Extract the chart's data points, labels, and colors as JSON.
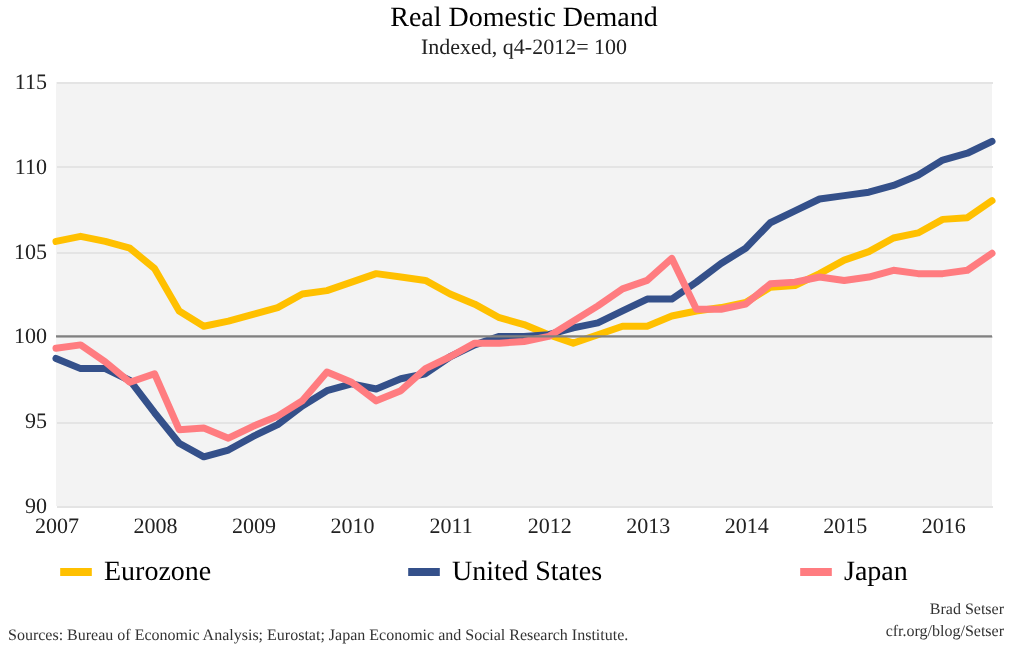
{
  "chart_data": {
    "type": "line",
    "title": "Real Domestic Demand",
    "subtitle": "Indexed, q4-2012= 100",
    "categories": [
      "2007",
      null,
      null,
      null,
      "2008",
      null,
      null,
      null,
      "2009",
      null,
      null,
      null,
      "2010",
      null,
      null,
      null,
      "2011",
      null,
      null,
      null,
      "2012",
      null,
      null,
      null,
      "2013",
      null,
      null,
      null,
      "2014",
      null,
      null,
      null,
      "2015",
      null,
      null,
      null,
      "2016",
      null,
      null
    ],
    "series": [
      {
        "name": "Eurozone",
        "color": "#ffc000",
        "values": [
          105.6,
          105.9,
          105.6,
          105.2,
          104.0,
          101.5,
          100.6,
          100.9,
          101.3,
          101.7,
          102.5,
          102.7,
          103.2,
          103.7,
          103.5,
          103.3,
          102.5,
          101.9,
          101.1,
          100.7,
          100.1,
          99.6,
          100.1,
          100.6,
          100.6,
          101.2,
          101.5,
          101.7,
          102.0,
          102.9,
          103.0,
          103.7,
          104.5,
          105.0,
          105.8,
          106.1,
          106.9,
          107.0,
          108.0
        ]
      },
      {
        "name": "United States",
        "color": "#34508a",
        "values": [
          98.7,
          98.1,
          98.1,
          97.4,
          95.5,
          93.7,
          92.9,
          93.3,
          94.1,
          94.8,
          95.9,
          96.8,
          97.2,
          96.9,
          97.5,
          97.8,
          98.8,
          99.5,
          100.0,
          100.0,
          100.1,
          100.5,
          100.8,
          101.5,
          102.2,
          102.2,
          103.2,
          104.3,
          105.2,
          106.7,
          107.4,
          108.1,
          108.3,
          108.5,
          108.9,
          109.5,
          110.4,
          110.8,
          111.5
        ]
      },
      {
        "name": "Japan",
        "color": "#ff7c80",
        "values": [
          99.3,
          99.5,
          98.5,
          97.3,
          97.8,
          94.5,
          94.6,
          94.0,
          94.7,
          95.3,
          96.2,
          97.9,
          97.3,
          96.2,
          96.8,
          98.1,
          98.8,
          99.6,
          99.6,
          99.7,
          100.0,
          100.9,
          101.8,
          102.8,
          103.3,
          104.6,
          101.6,
          101.6,
          101.9,
          103.1,
          103.2,
          103.5,
          103.3,
          103.5,
          103.9,
          103.7,
          103.7,
          103.9,
          104.9
        ]
      }
    ],
    "ylim": [
      90,
      115
    ],
    "yticks": [
      90,
      95,
      100,
      105,
      110,
      115
    ],
    "grid": "y",
    "legend": "bottom",
    "line_style": "solid",
    "ref_lines": [
      {
        "axis": "y",
        "value": 100,
        "color": "#808080"
      }
    ],
    "annotations": [
      "Brad Setser",
      "cfr.org/blog/Setser",
      "Sources: Bureau of Economic Analysis; Eurostat; Japan Economic and Social Research Institute."
    ]
  }
}
